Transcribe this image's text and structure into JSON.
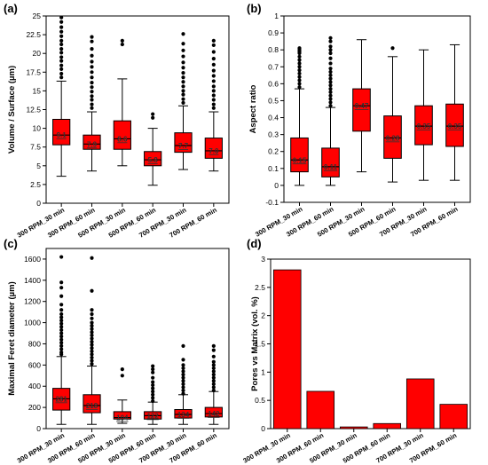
{
  "panels": [
    {
      "letter": "(a)",
      "ylabel": "Volume / Surface (µm)",
      "type": "box",
      "ylim": [
        0,
        25
      ],
      "yticks": [
        "0",
        "2.5",
        "5",
        "7.5",
        "10",
        "12.5",
        "15",
        "17.5",
        "20",
        "22.5",
        "25"
      ],
      "categories": [
        "300 RPM_30 min",
        "300 RPM_60 min",
        "500 RPM_30 min",
        "500 RPM_60 min",
        "700 RPM_30 min",
        "700 RPM_60 min"
      ],
      "boxes": [
        {
          "whislo": 3.6,
          "q1": 7.8,
          "med": 9.1,
          "q3": 11.2,
          "whishi": 16.3,
          "label": "9.1",
          "fliers": [
            16.8,
            17.3,
            17.9,
            18.4,
            19.0,
            19.5,
            20.1,
            20.6,
            21.2,
            21.7,
            22.3,
            22.9,
            23.5,
            24.2,
            24.8
          ]
        },
        {
          "whislo": 4.3,
          "q1": 7.2,
          "med": 7.9,
          "q3": 9.1,
          "whishi": 12.2,
          "label": "7.9",
          "fliers": [
            12.7,
            13.2,
            13.8,
            14.3,
            14.9,
            15.5,
            16.1,
            16.8,
            17.5,
            18.2,
            18.9,
            19.7,
            20.6,
            21.6,
            22.2
          ]
        },
        {
          "whislo": 5.0,
          "q1": 7.2,
          "med": 8.6,
          "q3": 11.0,
          "whishi": 16.6,
          "label": "8.6",
          "fliers": [
            21.2,
            21.7
          ]
        },
        {
          "whislo": 2.4,
          "q1": 5.0,
          "med": 5.8,
          "q3": 6.9,
          "whishi": 10.0,
          "label": "5.8",
          "fliers": [
            11.4,
            11.9
          ]
        },
        {
          "whislo": 4.5,
          "q1": 6.8,
          "med": 7.7,
          "q3": 9.4,
          "whishi": 13.0,
          "label": "7.7",
          "fliers": [
            13.4,
            13.9,
            14.5,
            15.0,
            15.6,
            16.2,
            16.8,
            17.4,
            18.1,
            18.8,
            19.6,
            20.4,
            21.3,
            22.6
          ]
        },
        {
          "whislo": 4.3,
          "q1": 6.0,
          "med": 7.0,
          "q3": 8.7,
          "whishi": 12.2,
          "label": "7.0",
          "fliers": [
            12.7,
            13.2,
            13.8,
            14.4,
            15.0,
            15.6,
            16.3,
            17.0,
            17.7,
            18.5,
            19.3,
            20.2,
            21.1,
            21.7
          ]
        }
      ]
    },
    {
      "letter": "(b)",
      "ylabel": "Aspect ratio",
      "type": "box",
      "ylim": [
        -0.1,
        1.0
      ],
      "yticks": [
        "-0.1",
        "0",
        "0.1",
        "0.2",
        "0.3",
        "0.4",
        "0.5",
        "0.6",
        "0.7",
        "0.8",
        "0.9",
        "1"
      ],
      "categories": [
        "300 RPM_30 min",
        "300 RPM_60 min",
        "500 RPM_30 min",
        "500 RPM_60 min",
        "700 RPM_30 min",
        "700 RPM_60 min"
      ],
      "boxes": [
        {
          "whislo": 0.0,
          "q1": 0.08,
          "med": 0.15,
          "q3": 0.28,
          "whishi": 0.57,
          "label": "0.15",
          "fliers": [
            0.58,
            0.6,
            0.62,
            0.64,
            0.66,
            0.68,
            0.7,
            0.72,
            0.74,
            0.76,
            0.78,
            0.79,
            0.8,
            0.81
          ]
        },
        {
          "whislo": 0.0,
          "q1": 0.05,
          "med": 0.11,
          "q3": 0.22,
          "whishi": 0.46,
          "label": "0.11",
          "fliers": [
            0.47,
            0.49,
            0.51,
            0.53,
            0.55,
            0.57,
            0.59,
            0.61,
            0.63,
            0.65,
            0.67,
            0.69,
            0.72,
            0.75,
            0.78,
            0.8,
            0.82,
            0.85,
            0.87
          ]
        },
        {
          "whislo": 0.08,
          "q1": 0.32,
          "med": 0.47,
          "q3": 0.57,
          "whishi": 0.86,
          "label": "0.47",
          "fliers": []
        },
        {
          "whislo": 0.02,
          "q1": 0.16,
          "med": 0.28,
          "q3": 0.41,
          "whishi": 0.76,
          "label": "0.28",
          "fliers": [
            0.81
          ]
        },
        {
          "whislo": 0.03,
          "q1": 0.24,
          "med": 0.35,
          "q3": 0.47,
          "whishi": 0.8,
          "label": "0.35",
          "fliers": []
        },
        {
          "whislo": 0.03,
          "q1": 0.23,
          "med": 0.35,
          "q3": 0.48,
          "whishi": 0.83,
          "label": "0.35",
          "fliers": []
        }
      ]
    },
    {
      "letter": "(c)",
      "ylabel": "Maximal Feret diameter (µm)",
      "type": "box",
      "ylim": [
        0,
        1700
      ],
      "yticks": [
        "0",
        "200",
        "400",
        "600",
        "800",
        "1000",
        "1200",
        "1400",
        "1600"
      ],
      "categories": [
        "300 RPM_30 min",
        "300 RPM_60 min",
        "500 RPM_30 min",
        "500 RPM_60 min",
        "700 RPM_30 min",
        "700 RPM_60 min"
      ],
      "boxes": [
        {
          "whislo": 40,
          "q1": 175,
          "med": 281,
          "q3": 380,
          "whishi": 680,
          "label": "281",
          "fliers": [
            700,
            720,
            750,
            780,
            810,
            840,
            870,
            900,
            930,
            960,
            990,
            1020,
            1050,
            1080,
            1120,
            1170,
            1250,
            1330,
            1380,
            1620
          ]
        },
        {
          "whislo": 40,
          "q1": 150,
          "med": 218,
          "q3": 320,
          "whishi": 590,
          "label": "218",
          "fliers": [
            610,
            640,
            670,
            700,
            730,
            760,
            790,
            820,
            850,
            880,
            910,
            940,
            970,
            1000,
            1040,
            1080,
            1120,
            1300,
            1610
          ]
        },
        {
          "whislo": 50,
          "q1": 90,
          "med": 104,
          "q3": 160,
          "whishi": 270,
          "label": "104",
          "fliers": [
            500,
            560
          ]
        },
        {
          "whislo": 40,
          "q1": 90,
          "med": 122,
          "q3": 160,
          "whishi": 250,
          "label": "122",
          "fliers": [
            260,
            290,
            320,
            350,
            380,
            410,
            440,
            480,
            530,
            560,
            590
          ]
        },
        {
          "whislo": 40,
          "q1": 100,
          "med": 134,
          "q3": 180,
          "whishi": 320,
          "label": "134",
          "fliers": [
            330,
            360,
            390,
            420,
            450,
            480,
            510,
            540,
            570,
            600,
            650,
            780
          ]
        },
        {
          "whislo": 40,
          "q1": 110,
          "med": 142,
          "q3": 200,
          "whishi": 350,
          "label": "142",
          "fliers": [
            360,
            390,
            420,
            450,
            480,
            510,
            540,
            570,
            600,
            630,
            680,
            740,
            780
          ]
        }
      ]
    },
    {
      "letter": "(d)",
      "ylabel": "Pores vs Matrix (vol. %)",
      "type": "bar",
      "ylim": [
        0,
        3
      ],
      "yticks": [
        "0",
        "0.5",
        "1",
        "1.5",
        "2",
        "2.5",
        "3"
      ],
      "categories": [
        "300 RPM_30 min",
        "300 RPM_60 min",
        "500 RPM_30 min",
        "500 RPM_60 min",
        "700 RPM_30 min",
        "700 RPM_60 min"
      ],
      "values": [
        2.81,
        0.66,
        0.03,
        0.09,
        0.88,
        0.43
      ]
    }
  ],
  "colors": {
    "fill": "#ff0000",
    "edge": "#000000"
  }
}
